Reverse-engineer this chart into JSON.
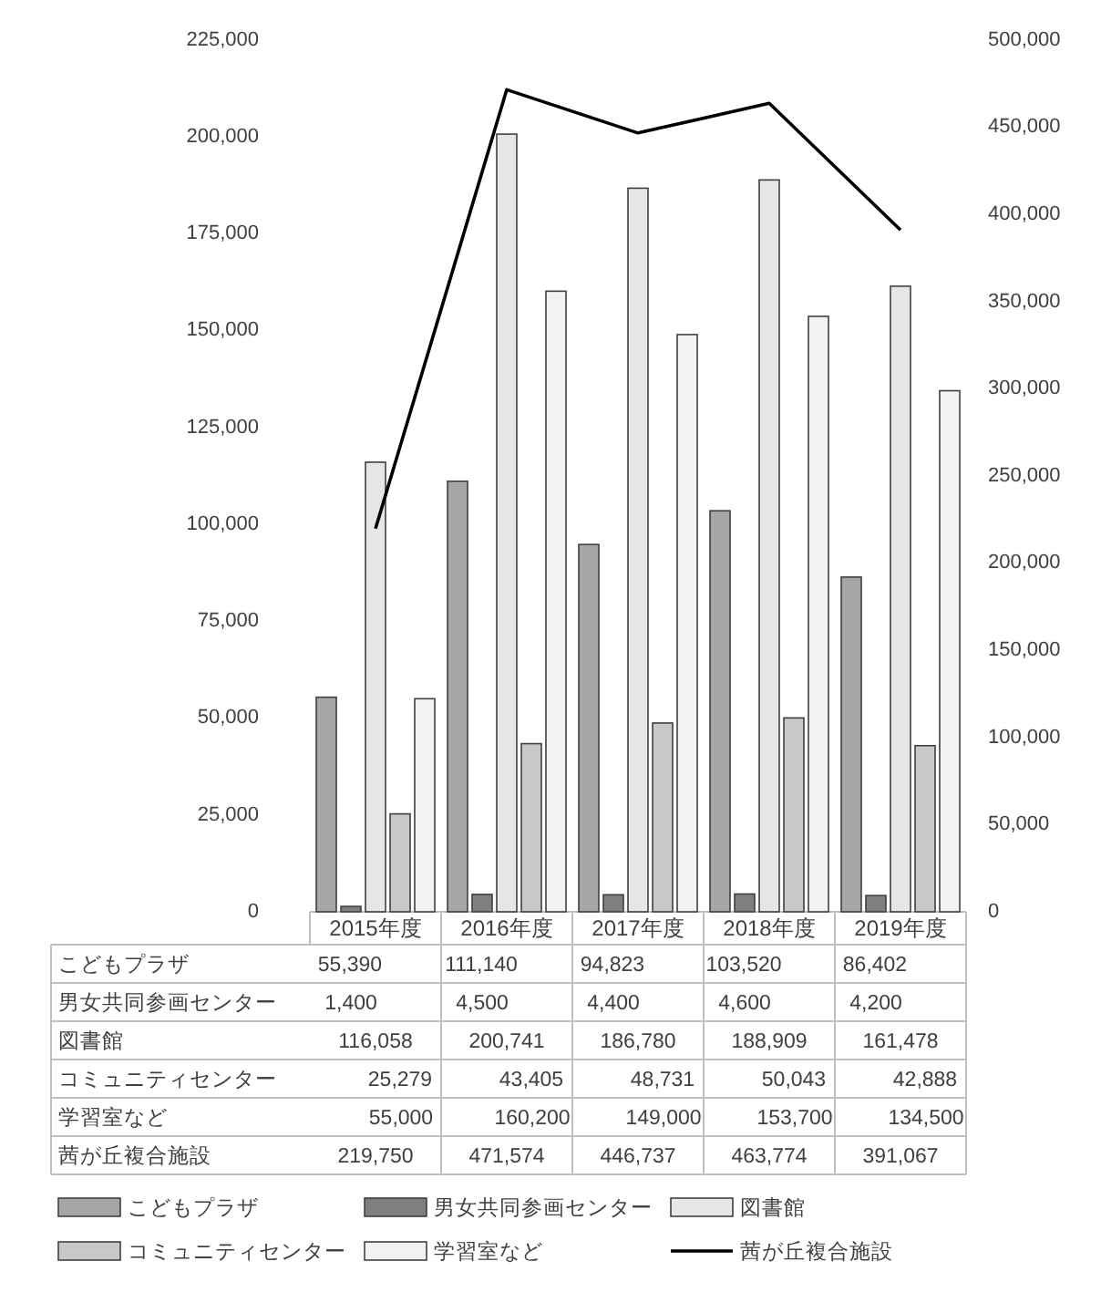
{
  "chart_data": {
    "type": "bar",
    "categories": [
      "2015年度",
      "2016年度",
      "2017年度",
      "2018年度",
      "2019年度"
    ],
    "series": [
      {
        "name": "こどもプラザ",
        "color": "#a6a6a6",
        "values": [
          55390,
          111140,
          94823,
          103520,
          86402
        ],
        "value_labels": [
          "55,390",
          "111,140",
          "94,823",
          "103,520",
          "86,402"
        ]
      },
      {
        "name": "男女共同参画センター",
        "color": "#7f7f7f",
        "values": [
          1400,
          4500,
          4400,
          4600,
          4200
        ],
        "value_labels": [
          "1,400",
          "4,500",
          "4,400",
          "4,600",
          "4,200"
        ]
      },
      {
        "name": "図書館",
        "color": "#e6e6e6",
        "values": [
          116058,
          200741,
          186780,
          188909,
          161478
        ],
        "value_labels": [
          "116,058",
          "200,741",
          "186,780",
          "188,909",
          "161,478"
        ]
      },
      {
        "name": "コミュニティセンター",
        "color": "#c8c8c8",
        "values": [
          25279,
          43405,
          48731,
          50043,
          42888
        ],
        "value_labels": [
          "25,279",
          "43,405",
          "48,731",
          "50,043",
          "42,888"
        ]
      },
      {
        "name": "学習室など",
        "color": "#f2f2f2",
        "values": [
          55000,
          160200,
          149000,
          153700,
          134500
        ],
        "value_labels": [
          "55,000",
          "160,200",
          "149,000",
          "153,700",
          "134,500"
        ]
      },
      {
        "name": "茜が丘複合施設",
        "color": "#000000",
        "type": "line",
        "axis": "y2",
        "values": [
          219750,
          471574,
          446737,
          463774,
          391067
        ],
        "value_labels": [
          "219,750",
          "471,574",
          "446,737",
          "463,774",
          "391,067"
        ]
      }
    ],
    "ylim": [
      0,
      225000
    ],
    "yticks": [
      0,
      {
        "value": 25000,
        "label": "25,000"
      },
      {
        "value": 50000,
        "label": "50,000"
      },
      {
        "value": 75000,
        "label": "75,000"
      },
      {
        "value": 100000,
        "label": "100,000"
      },
      {
        "value": 125000,
        "label": "125,000"
      },
      {
        "value": 150000,
        "label": "150,000"
      },
      {
        "value": 175000,
        "label": "175,000"
      },
      {
        "value": 200000,
        "label": "200,000"
      },
      {
        "value": 225000,
        "label": "225,000"
      }
    ],
    "y2lim": [
      0,
      500000
    ],
    "y2ticks": [
      0,
      {
        "value": 50000,
        "label": "50,000"
      },
      {
        "value": 100000,
        "label": "100,000"
      },
      {
        "value": 150000,
        "label": "150,000"
      },
      {
        "value": 200000,
        "label": "200,000"
      },
      {
        "value": 250000,
        "label": "250,000"
      },
      {
        "value": 300000,
        "label": "300,000"
      },
      {
        "value": 350000,
        "label": "350,000"
      },
      {
        "value": 400000,
        "label": "400,000"
      },
      {
        "value": 450000,
        "label": "450,000"
      },
      {
        "value": 500000,
        "label": "500,000"
      }
    ],
    "legend": "bottom"
  }
}
